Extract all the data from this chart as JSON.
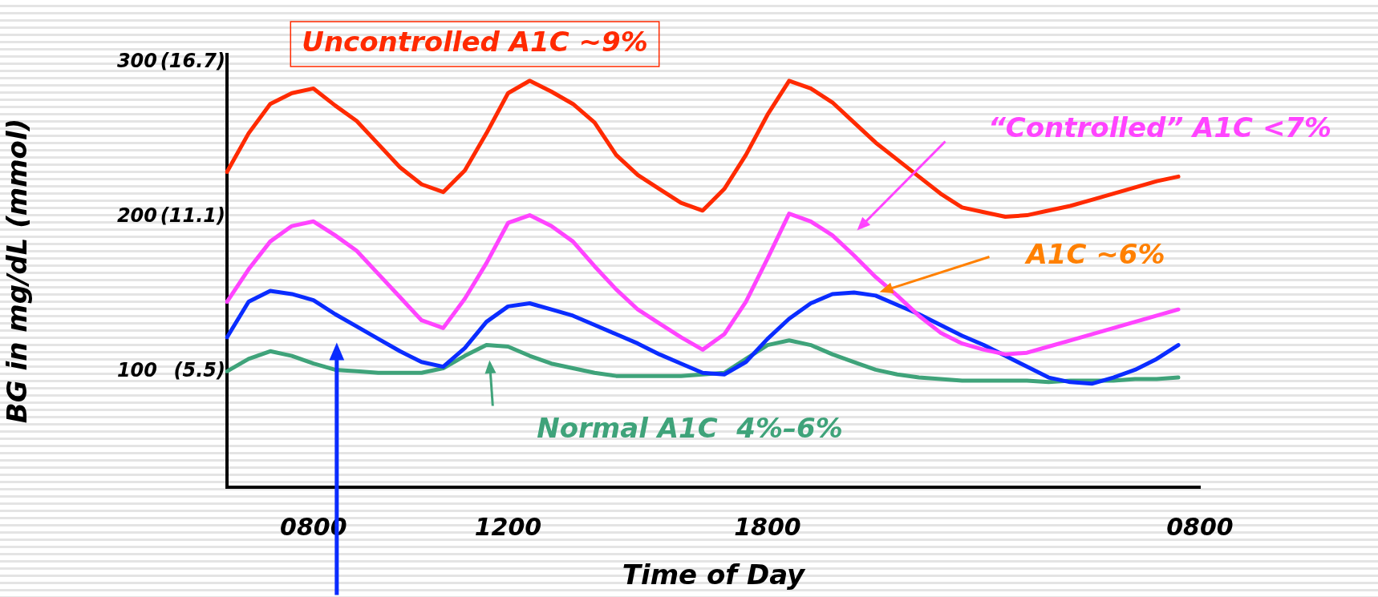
{
  "chart_data": {
    "type": "line",
    "xlabel": "Time of Day",
    "ylabel": "BG in mg/dL (mmol)",
    "categories": [
      null,
      null,
      null,
      null,
      "0800",
      null,
      null,
      null,
      null,
      null,
      null,
      null,
      null,
      "1200",
      null,
      null,
      null,
      null,
      null,
      null,
      null,
      null,
      null,
      null,
      null,
      "1800",
      null,
      null,
      null,
      null,
      null,
      null,
      null,
      null,
      null,
      null,
      null,
      null,
      null,
      null,
      null,
      null,
      null,
      null,
      null,
      "0800"
    ],
    "ylim": [
      25,
      305
    ],
    "yticks": [
      100,
      200,
      300
    ],
    "y2lim": [
      1.3,
      16.98
    ],
    "y2ticks": [
      {
        "value": 5.5,
        "label": "(5.5)"
      },
      {
        "value": 11.1,
        "label": "(11.1)"
      },
      {
        "value": 16.7,
        "label": "(16.7)"
      }
    ],
    "annotations": [
      "A1C ~6%"
    ],
    "grid": false,
    "legend": false,
    "marker": "none",
    "line_style": "solid",
    "series": [
      {
        "name": "Uncontrolled A1C ~9%",
        "color": "#ff2a00",
        "values": [
          229,
          254,
          273,
          280,
          283,
          272,
          262,
          247,
          232,
          221,
          216,
          230,
          254,
          280,
          288,
          281,
          273,
          261,
          240,
          227,
          218,
          209,
          204,
          218,
          240,
          266,
          288,
          283,
          274,
          261,
          248,
          237,
          226,
          215,
          206,
          203,
          200,
          201,
          204,
          207,
          211,
          215,
          219,
          223,
          226,
          null
        ]
      },
      {
        "name": "“Controlled” A1C <7%",
        "color": "#ff44ff",
        "values": [
          145,
          166,
          184,
          194,
          197,
          188,
          178,
          163,
          148,
          133,
          128,
          147,
          170,
          196,
          201,
          194,
          184,
          168,
          153,
          140,
          131,
          122,
          114,
          124,
          145,
          173,
          202,
          197,
          188,
          175,
          161,
          149,
          136,
          125,
          118,
          114,
          111,
          112,
          116,
          120,
          124,
          128,
          132,
          136,
          140,
          null
        ]
      },
      {
        "color": "#0a2cff",
        "values": [
          122,
          145,
          152,
          150,
          146,
          137,
          129,
          121,
          113,
          106,
          103,
          115,
          132,
          142,
          144,
          140,
          136,
          130,
          124,
          118,
          111,
          105,
          99,
          98,
          106,
          121,
          134,
          144,
          150,
          151,
          149,
          143,
          137,
          130,
          123,
          117,
          110,
          103,
          96,
          93,
          92,
          96,
          101,
          108,
          117,
          null
        ]
      },
      {
        "name": "Normal A1C  4%–6%",
        "color": "#3fa37a",
        "values": [
          100,
          108,
          113,
          110,
          105,
          101,
          100,
          99,
          99,
          99,
          102,
          110,
          117,
          116,
          110,
          105,
          102,
          99,
          97,
          97,
          97,
          97,
          98,
          99,
          108,
          117,
          120,
          117,
          111,
          106,
          101,
          98,
          96,
          95,
          94,
          94,
          94,
          94,
          93,
          94,
          94,
          94,
          95,
          95,
          96,
          null
        ]
      }
    ]
  }
}
